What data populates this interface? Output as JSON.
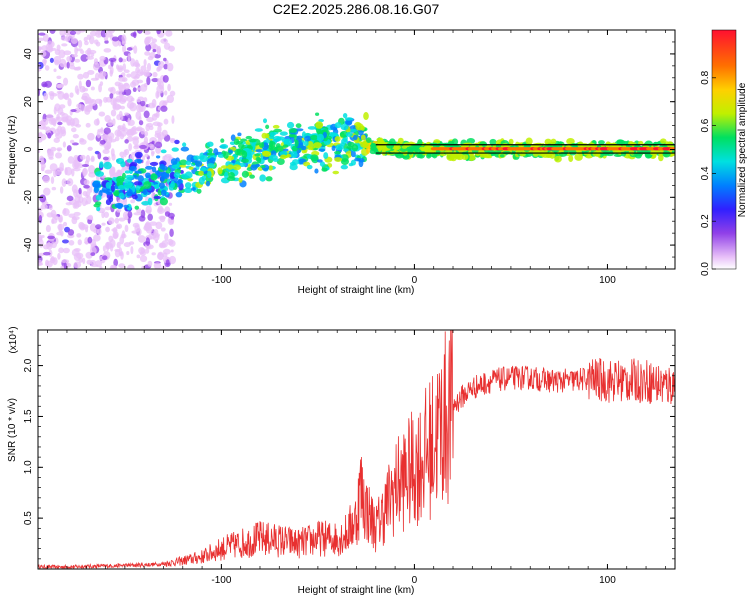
{
  "chart_data": [
    {
      "type": "heatmap",
      "title": "C2E2.2025.286.08.16.G07",
      "xlabel": "Height of straight line (km)",
      "ylabel": "Frequency (Hz)",
      "xlim": [
        -195,
        135
      ],
      "ylim": [
        -50,
        50
      ],
      "x_ticks": [
        -100,
        0,
        100
      ],
      "y_ticks": [
        -40,
        -20,
        0,
        20,
        40
      ],
      "colorbar": {
        "label": "Normalized spectral amplitude",
        "range": [
          0,
          1
        ],
        "ticks": [
          "0.0",
          "0.2",
          "0.4",
          "0.6",
          "0.8"
        ],
        "tick_values": [
          0,
          0.2,
          0.4,
          0.6,
          0.8
        ],
        "colors": [
          "#ffffff",
          "#e8c0f8",
          "#9040e8",
          "#3020ff",
          "#0080ff",
          "#00e0e0",
          "#00e060",
          "#c0f000",
          "#ffd000",
          "#ff7000",
          "#ff1030"
        ]
      },
      "ridge": {
        "description_values": "frequency ridge vs height",
        "points": [
          {
            "x": -160,
            "freq": -16
          },
          {
            "x": -130,
            "freq": -13
          },
          {
            "x": -110,
            "freq": -7
          },
          {
            "x": -90,
            "freq": -3
          },
          {
            "x": -70,
            "freq": 1
          },
          {
            "x": -50,
            "freq": 3
          },
          {
            "x": -30,
            "freq": 4
          },
          {
            "x": -20,
            "freq": 1
          },
          {
            "x": 0,
            "freq": 0
          },
          {
            "x": 135,
            "freq": 0
          }
        ]
      }
    },
    {
      "type": "line",
      "xlabel": "Height of straight line (km)",
      "ylabel": "SNR (10 * v/v)",
      "y_multiplier": "(x10⁴)",
      "xlim": [
        -195,
        135
      ],
      "ylim": [
        0,
        2.35
      ],
      "x_ticks": [
        -100,
        0,
        100
      ],
      "y_ticks": [
        0.5,
        1.0,
        1.5,
        2.0
      ],
      "y_tick_labels": [
        "0.5",
        "1.0",
        "1.5",
        "2.0"
      ],
      "color": "#e83030",
      "series": [
        {
          "name": "SNR",
          "x": [
            -195,
            -180,
            -160,
            -140,
            -130,
            -120,
            -110,
            -100,
            -90,
            -80,
            -70,
            -60,
            -50,
            -40,
            -35,
            -30,
            -28,
            -25,
            -20,
            -15,
            -10,
            -5,
            0,
            5,
            10,
            15,
            20,
            25,
            30,
            40,
            50,
            60,
            70,
            80,
            90,
            100,
            110,
            120,
            130,
            135
          ],
          "values": [
            0.02,
            0.02,
            0.03,
            0.04,
            0.05,
            0.08,
            0.12,
            0.2,
            0.25,
            0.3,
            0.28,
            0.25,
            0.3,
            0.3,
            0.35,
            0.5,
            0.8,
            0.6,
            0.4,
            0.6,
            0.8,
            0.9,
            1.0,
            1.1,
            1.25,
            1.45,
            1.6,
            1.7,
            1.78,
            1.85,
            1.88,
            1.88,
            1.85,
            1.85,
            1.87,
            1.85,
            1.85,
            1.85,
            1.8,
            1.82
          ]
        }
      ]
    }
  ]
}
